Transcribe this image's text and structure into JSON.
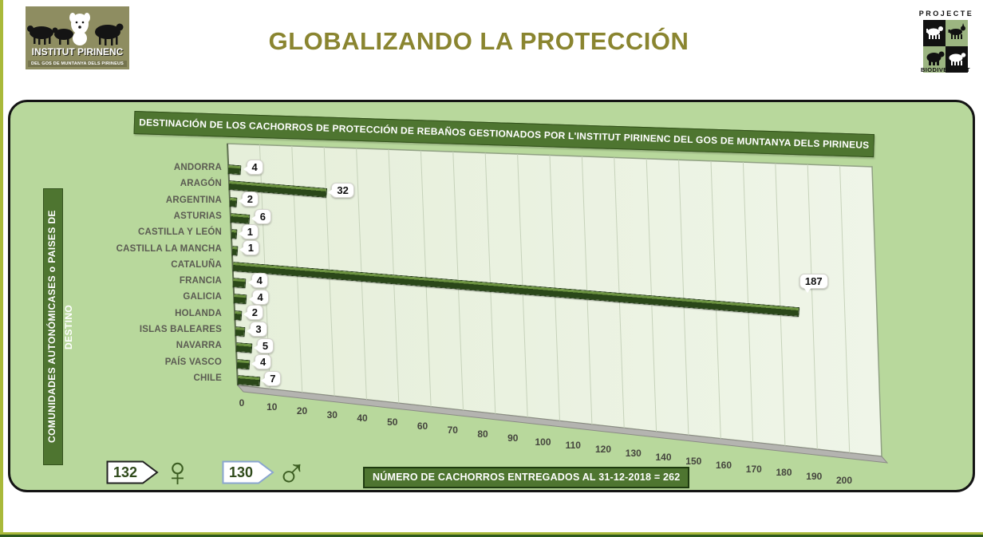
{
  "header": {
    "title": "GLOBALIZANDO LA PROTECCIÓN",
    "logo_left": {
      "name_line": "INSTITUT PIRINENC",
      "subtitle": "DEL GOS DE MUNTANYA DELS PIRINEUS"
    },
    "logo_right": {
      "top_label": "PROJECTE",
      "bottom_label": "BIODIVERSITAT"
    }
  },
  "chart_data": {
    "type": "bar",
    "orientation": "horizontal",
    "style": "3d-perspective",
    "title": "DESTINACIÓN DE LOS CACHORROS DE PROTECCIÓN DE REBAÑOS GESTIONADOS POR L'INSTITUT PIRINENC DEL GOS DE MUNTANYA DELS PIRINEUS",
    "category_axis_label": "COMUNIDADES AUTONÓMICASES o PAISES DE DESTINO",
    "categories": [
      "ANDORRA",
      "ARAGÓN",
      "ARGENTINA",
      "ASTURIAS",
      "CASTILLA Y LEÓN",
      "CASTILLA LA MANCHA",
      "CATALUÑA",
      "FRANCIA",
      "GALICIA",
      "HOLANDA",
      "ISLAS BALEARES",
      "NAVARRA",
      "PAÍS VASCO",
      "CHILE"
    ],
    "values": [
      4,
      32,
      2,
      6,
      1,
      1,
      187,
      4,
      4,
      2,
      3,
      5,
      4,
      7
    ],
    "xlim": [
      0,
      200
    ],
    "xtick_step": 10,
    "grid": true,
    "legend_position": "none",
    "bar_color": "#2a4719",
    "plot_bg": "#e9f1dd"
  },
  "footer": {
    "female_count": "132",
    "female_symbol": "♀",
    "male_count": "130",
    "male_symbol": "♂",
    "total_label": "NÚMERO DE CACHORROS ENTREGADOS AL 31-12-2018 = 262"
  },
  "colors": {
    "accent_lime": "#a9b93a",
    "panel_green": "#b8d89c",
    "banner_green": "#4e7530",
    "footer_green": "#2d5a1e",
    "title_olive": "#8a8530"
  }
}
